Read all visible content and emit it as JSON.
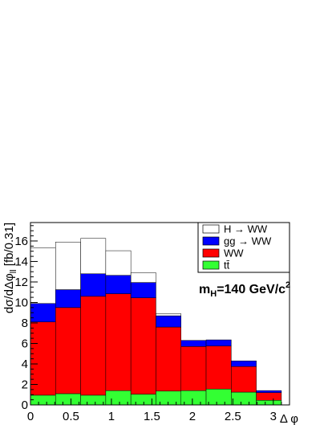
{
  "chart_data": {
    "type": "bar",
    "stacked": true,
    "x_bin_edges": [
      0,
      0.31,
      0.62,
      0.93,
      1.24,
      1.55,
      1.86,
      2.17,
      2.48,
      2.79,
      3.1
    ],
    "xlim": [
      0,
      3.2
    ],
    "ylim": [
      0,
      17.8
    ],
    "xticks": [
      "0",
      "0.5",
      "1",
      "1.5",
      "2",
      "2.5",
      "3"
    ],
    "yticks": [
      "0",
      "2",
      "4",
      "6",
      "8",
      "10",
      "12",
      "14",
      "16"
    ],
    "xlabel": "Δ φ",
    "ylabel": "dσ/dΔφ_ll [fb/0.31]",
    "ylabel_main": "dσ/dΔφ",
    "ylabel_sub": "ll",
    "ylabel_tail": " [fb/0.31]",
    "annotation_main": "m",
    "annotation_sub": "H",
    "annotation_mid": "=140 GeV/c",
    "annotation_sup": "2",
    "legend_placement": "top-right",
    "series": [
      {
        "name": "tt̄",
        "color": "#33ff33",
        "values": [
          0.95,
          1.1,
          0.95,
          1.4,
          1.05,
          1.35,
          1.4,
          1.55,
          1.25,
          0.45
        ]
      },
      {
        "name": "WW",
        "color": "#ff0000",
        "values": [
          7.15,
          8.4,
          9.65,
          9.45,
          9.4,
          6.25,
          4.3,
          4.2,
          2.5,
          0.75
        ]
      },
      {
        "name": "gg → WW",
        "color": "#0000ff",
        "values": [
          1.8,
          1.75,
          2.2,
          1.8,
          1.5,
          1.1,
          0.6,
          0.6,
          0.55,
          0.2
        ]
      },
      {
        "name": "H → WW",
        "color": "#ffffff",
        "values": [
          5.45,
          4.65,
          3.45,
          2.4,
          0.95,
          0.2,
          0.0,
          0.0,
          0.0,
          0.0
        ]
      }
    ],
    "legend": [
      {
        "label": "H → WW",
        "color": "#ffffff"
      },
      {
        "label": "gg → WW",
        "color": "#0000ff"
      },
      {
        "label": "WW",
        "color": "#ff0000"
      },
      {
        "label": "tt̄",
        "color": "#33ff33"
      }
    ]
  }
}
